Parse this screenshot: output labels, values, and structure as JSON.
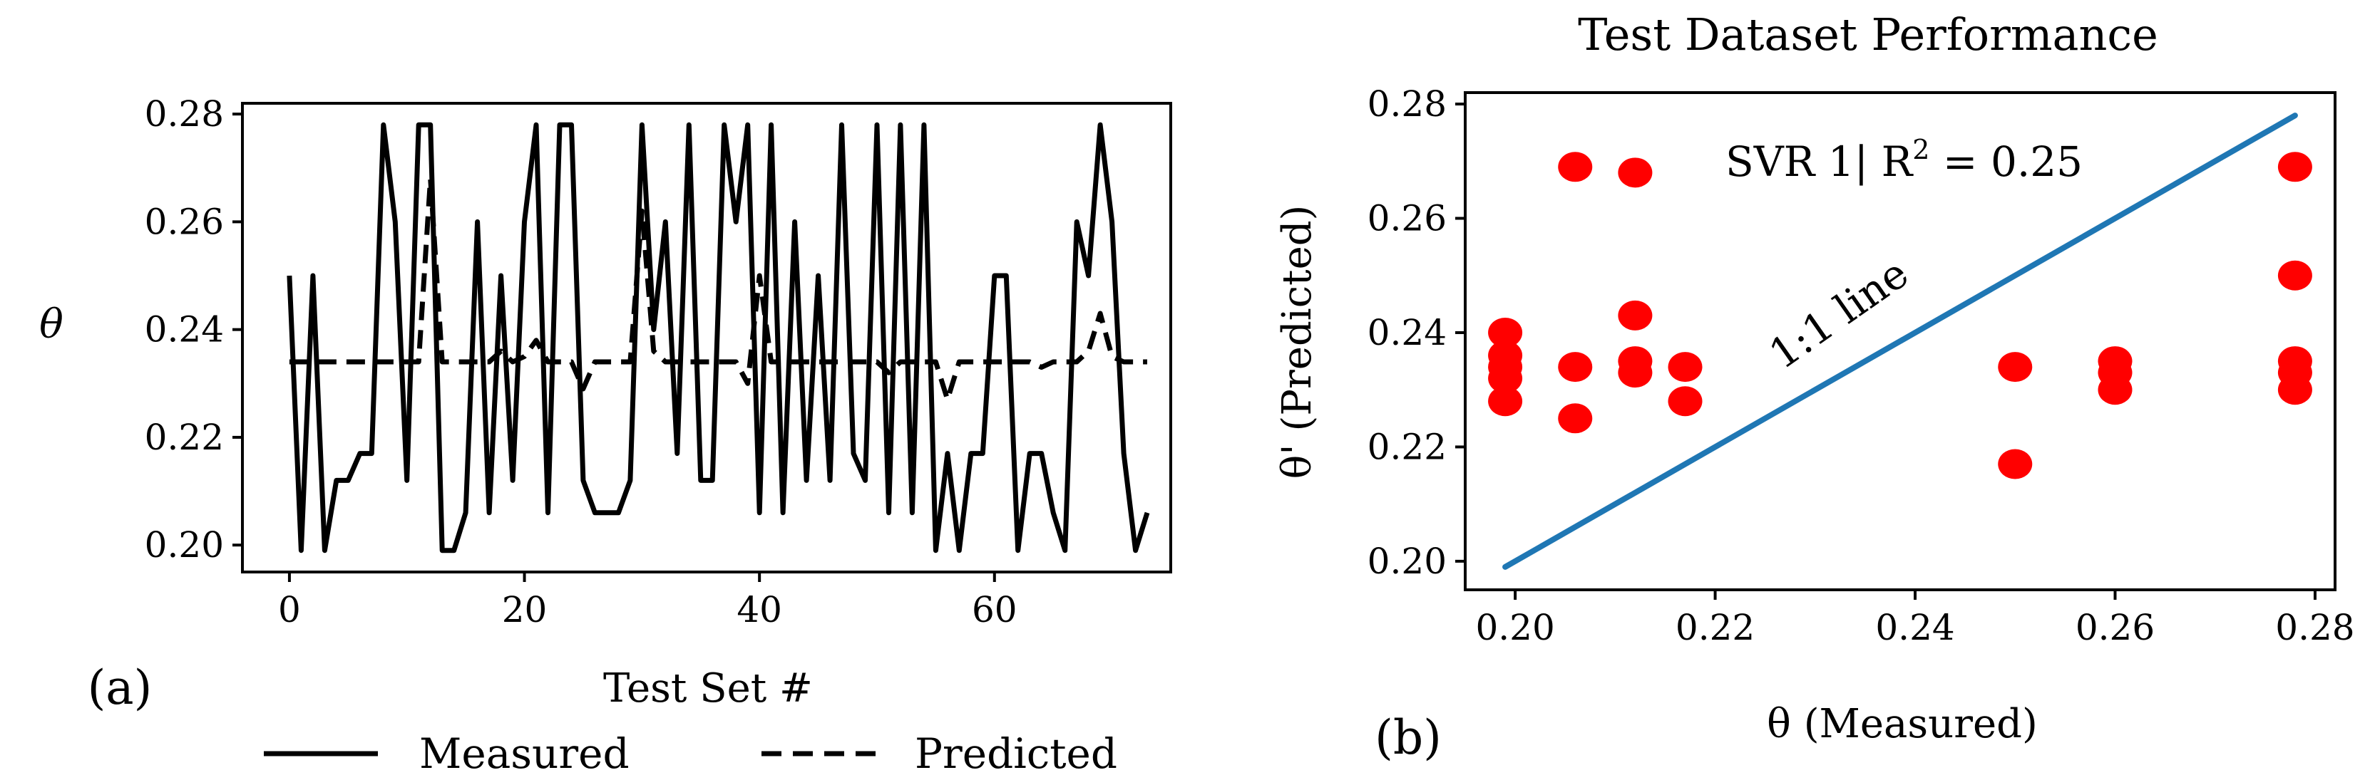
{
  "chart_data": [
    {
      "type": "line",
      "panel_label": "(a)",
      "title": "",
      "xlabel": "Test Set #",
      "ylabel": "θ",
      "xlim": [
        -4,
        75
      ],
      "ylim": [
        0.195,
        0.282
      ],
      "xticks": [
        "0",
        "20",
        "40",
        "60"
      ],
      "yticks": [
        "0.20",
        "0.22",
        "0.24",
        "0.26",
        "0.28"
      ],
      "legend_position": "bottom",
      "series": [
        {
          "name": "Measured",
          "style": "solid",
          "x": [
            0,
            1,
            2,
            3,
            4,
            5,
            6,
            7,
            8,
            9,
            10,
            11,
            12,
            13,
            14,
            15,
            16,
            17,
            18,
            19,
            20,
            21,
            22,
            23,
            24,
            25,
            26,
            27,
            28,
            29,
            30,
            31,
            32,
            33,
            34,
            35,
            36,
            37,
            38,
            39,
            40,
            41,
            42,
            43,
            44,
            45,
            46,
            47,
            48,
            49,
            50,
            51,
            52,
            53,
            54,
            55,
            56,
            57,
            58,
            59,
            60,
            61,
            62,
            63,
            64,
            65,
            66,
            67,
            68,
            69,
            70,
            71,
            72,
            73
          ],
          "values": [
            0.25,
            0.199,
            0.25,
            0.199,
            0.212,
            0.212,
            0.217,
            0.217,
            0.278,
            0.26,
            0.212,
            0.278,
            0.278,
            0.199,
            0.199,
            0.206,
            0.26,
            0.206,
            0.25,
            0.212,
            0.26,
            0.278,
            0.206,
            0.278,
            0.278,
            0.212,
            0.206,
            0.206,
            0.206,
            0.212,
            0.278,
            0.24,
            0.26,
            0.217,
            0.278,
            0.212,
            0.212,
            0.278,
            0.26,
            0.278,
            0.206,
            0.278,
            0.206,
            0.26,
            0.212,
            0.25,
            0.212,
            0.278,
            0.217,
            0.212,
            0.278,
            0.206,
            0.278,
            0.206,
            0.278,
            0.199,
            0.217,
            0.199,
            0.217,
            0.217,
            0.25,
            0.25,
            0.199,
            0.217,
            0.217,
            0.206,
            0.199,
            0.26,
            0.25,
            0.278,
            0.26,
            0.217,
            0.199,
            0.206
          ]
        },
        {
          "name": "Predicted",
          "style": "dashed",
          "x": [
            0,
            1,
            2,
            3,
            4,
            5,
            6,
            7,
            8,
            9,
            10,
            11,
            12,
            13,
            14,
            15,
            16,
            17,
            18,
            19,
            20,
            21,
            22,
            23,
            24,
            25,
            26,
            27,
            28,
            29,
            30,
            31,
            32,
            33,
            34,
            35,
            36,
            37,
            38,
            39,
            40,
            41,
            42,
            43,
            44,
            45,
            46,
            47,
            48,
            49,
            50,
            51,
            52,
            53,
            54,
            55,
            56,
            57,
            58,
            59,
            60,
            61,
            62,
            63,
            64,
            65,
            66,
            67,
            68,
            69,
            70,
            71,
            72,
            73
          ],
          "values": [
            0.234,
            0.234,
            0.234,
            0.234,
            0.234,
            0.234,
            0.234,
            0.234,
            0.234,
            0.234,
            0.234,
            0.234,
            0.268,
            0.234,
            0.234,
            0.234,
            0.234,
            0.234,
            0.236,
            0.234,
            0.235,
            0.238,
            0.234,
            0.234,
            0.234,
            0.229,
            0.234,
            0.234,
            0.234,
            0.234,
            0.262,
            0.236,
            0.234,
            0.234,
            0.234,
            0.234,
            0.234,
            0.234,
            0.234,
            0.23,
            0.25,
            0.234,
            0.234,
            0.234,
            0.234,
            0.234,
            0.234,
            0.234,
            0.234,
            0.234,
            0.234,
            0.232,
            0.234,
            0.234,
            0.234,
            0.234,
            0.227,
            0.234,
            0.234,
            0.234,
            0.234,
            0.234,
            0.234,
            0.234,
            0.233,
            0.234,
            0.234,
            0.234,
            0.236,
            0.243,
            0.235,
            0.234,
            0.234,
            0.234
          ]
        }
      ]
    },
    {
      "type": "scatter",
      "panel_label": "(b)",
      "title": "Test Dataset Performance",
      "xlabel": "θ (Measured)",
      "ylabel": "θ' (Predicted)",
      "xlim": [
        0.195,
        0.282
      ],
      "ylim": [
        0.195,
        0.282
      ],
      "xticks": [
        "0.20",
        "0.22",
        "0.24",
        "0.26",
        "0.28"
      ],
      "yticks": [
        "0.20",
        "0.22",
        "0.24",
        "0.26",
        "0.28"
      ],
      "annotation": "SVR 1| R",
      "annotation_sup": "2",
      "annotation_tail": " = 0.25",
      "reference_line_label": "1:1 line",
      "reference_line": {
        "x": [
          0.199,
          0.278
        ],
        "y": [
          0.199,
          0.278
        ]
      },
      "point_color": "#ff0000",
      "line_color": "#1f77b4",
      "points": [
        {
          "x": 0.199,
          "y": 0.24
        },
        {
          "x": 0.199,
          "y": 0.236
        },
        {
          "x": 0.199,
          "y": 0.234
        },
        {
          "x": 0.199,
          "y": 0.232
        },
        {
          "x": 0.199,
          "y": 0.228
        },
        {
          "x": 0.206,
          "y": 0.269
        },
        {
          "x": 0.206,
          "y": 0.234
        },
        {
          "x": 0.206,
          "y": 0.225
        },
        {
          "x": 0.212,
          "y": 0.268
        },
        {
          "x": 0.212,
          "y": 0.243
        },
        {
          "x": 0.212,
          "y": 0.235
        },
        {
          "x": 0.212,
          "y": 0.233
        },
        {
          "x": 0.217,
          "y": 0.234
        },
        {
          "x": 0.217,
          "y": 0.228
        },
        {
          "x": 0.25,
          "y": 0.234
        },
        {
          "x": 0.25,
          "y": 0.217
        },
        {
          "x": 0.26,
          "y": 0.235
        },
        {
          "x": 0.26,
          "y": 0.233
        },
        {
          "x": 0.26,
          "y": 0.23
        },
        {
          "x": 0.278,
          "y": 0.269
        },
        {
          "x": 0.278,
          "y": 0.25
        },
        {
          "x": 0.278,
          "y": 0.235
        },
        {
          "x": 0.278,
          "y": 0.233
        },
        {
          "x": 0.278,
          "y": 0.23
        }
      ]
    }
  ]
}
